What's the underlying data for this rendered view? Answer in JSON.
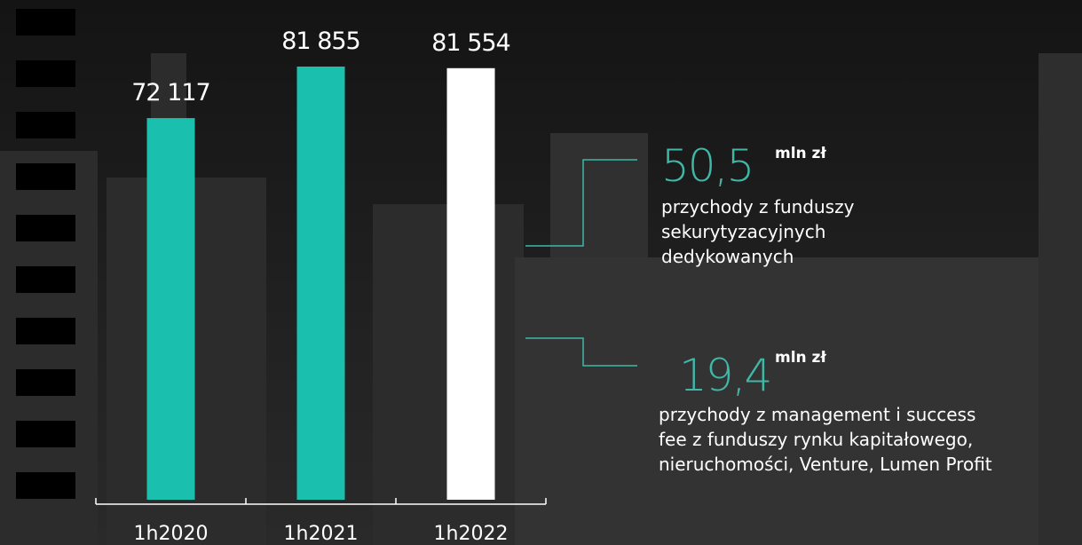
{
  "chart_data": {
    "type": "bar",
    "categories": [
      "1h2020",
      "1h2021",
      "1h2022"
    ],
    "values": [
      72117,
      81855,
      81554
    ],
    "value_labels": [
      "72 117",
      "81 855",
      "81 554"
    ],
    "colors": [
      "#1abfae",
      "#1abfae",
      "#ffffff"
    ],
    "annotations": [
      {
        "value": "50,5",
        "unit": "mln zł",
        "text": [
          "przychody z funduszy",
          "sekurytyzacyjnych",
          "dedykowanych"
        ]
      },
      {
        "value": "19,4",
        "unit": "mln zł",
        "text": [
          "przychody z management i success",
          "fee z funduszy rynku kapitałowego,",
          "nieruchomości, Venture, Lumen Profit"
        ]
      }
    ]
  }
}
